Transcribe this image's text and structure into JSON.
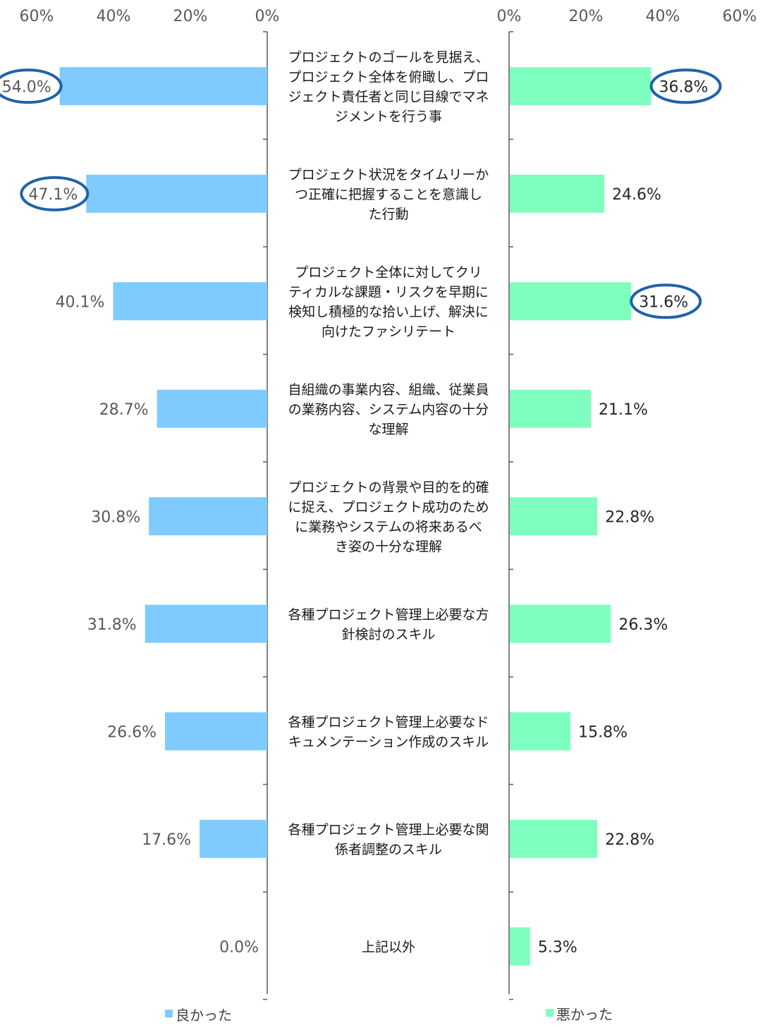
{
  "chart_data": {
    "type": "bar",
    "orientation": "horizontal-butterfly",
    "categories": [
      "プロジェクトのゴールを見据え、\nプロジェクト全体を俯瞰し、プロ\nジェクト責任者と同じ目線でマネ\nジメントを行う事",
      "プロジェクト状況をタイムリーか\nつ正確に把握することを意識し\nた行動",
      "プロジェクト全体に対してクリ\nティカルな課題・リスクを早期に\n検知し積極的な拾い上げ、解決に\n向けたファシリテート",
      "自組織の事業内容、組織、従業員\nの業務内容、システム内容の十分\nな理解",
      "プロジェクトの背景や目的を的確\nに捉え、プロジェクト成功のため\nに業務やシステムの将来あるべ\nき姿の十分な理解",
      "各種プロジェクト管理上必要な方\n針検討のスキル",
      "各種プロジェクト管理上必要なド\nキュメンテーション作成のスキル",
      "各種プロジェクト管理上必要な関\n係者調整のスキル",
      "上記以外"
    ],
    "series": [
      {
        "name": "良かった",
        "color": "#7fcbff",
        "side": "left",
        "values": [
          54.0,
          47.1,
          40.1,
          28.7,
          30.8,
          31.8,
          26.6,
          17.6,
          0.0
        ],
        "labels": [
          "54.0%",
          "47.1%",
          "40.1%",
          "28.7%",
          "30.8%",
          "31.8%",
          "26.6%",
          "17.6%",
          "0.0%"
        ],
        "highlighted": [
          0,
          1
        ]
      },
      {
        "name": "悪かった",
        "color": "#7fffbf",
        "side": "right",
        "values": [
          36.8,
          24.6,
          31.6,
          21.1,
          22.8,
          26.3,
          15.8,
          22.8,
          5.3
        ],
        "labels": [
          "36.8%",
          "24.6%",
          "31.6%",
          "21.1%",
          "22.8%",
          "26.3%",
          "15.8%",
          "22.8%",
          "5.3%"
        ],
        "highlighted": [
          0,
          2
        ]
      }
    ],
    "xlim": [
      0,
      60
    ],
    "xticks": [
      "0%",
      "20%",
      "40%",
      "60%"
    ],
    "highlight_color": "#1f63a8",
    "legend": "bottom"
  }
}
